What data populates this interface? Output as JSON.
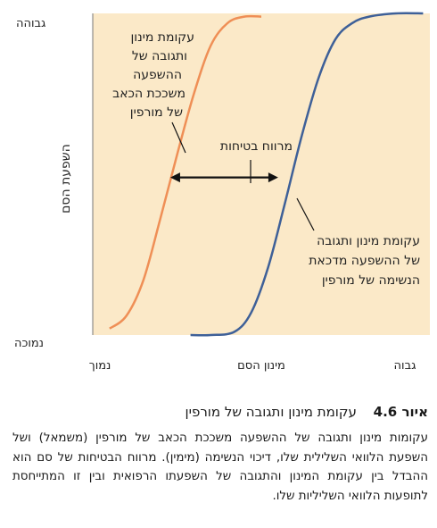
{
  "chart_data": {
    "type": "line",
    "ylabel": "השפעת הסם",
    "y_ticks": [
      "גבוהה",
      "נמוכה"
    ],
    "xlabel": "מינון הסם",
    "x_ticks": [
      "נמוך",
      "גבוה"
    ],
    "xlim": [
      0,
      1
    ],
    "ylim": [
      0,
      1
    ],
    "series": [
      {
        "name": "עקומת מינון ותגובה של ההשפעה משככת הכאב של מורפין",
        "color": "#ef8f56",
        "x": [
          0.05,
          0.1,
          0.15,
          0.2,
          0.25,
          0.3,
          0.35,
          0.4,
          0.45,
          0.5
        ],
        "y": [
          0.02,
          0.06,
          0.17,
          0.36,
          0.56,
          0.75,
          0.9,
          0.97,
          0.99,
          0.99
        ]
      },
      {
        "name": "עקומת מינון ותגובה של ההשפעה מדכאת הנשימה של מורפין",
        "color": "#3e6098",
        "x": [
          0.29,
          0.35,
          0.42,
          0.47,
          0.52,
          0.57,
          0.62,
          0.67,
          0.72,
          0.77,
          0.82,
          0.9,
          0.98
        ],
        "y": [
          0.0,
          0.0,
          0.01,
          0.07,
          0.21,
          0.41,
          0.62,
          0.8,
          0.92,
          0.97,
          0.99,
          1.0,
          1.0
        ]
      }
    ],
    "annotations": [
      {
        "text": "מרווח בטיחות",
        "type": "double-arrow",
        "x": [
          0.23,
          0.55
        ],
        "y": 0.49
      }
    ],
    "grid": false
  },
  "curve_label_1": [
    "עקומת מינון",
    "ותגובה של",
    "ההשפעה",
    "משככת הכאב",
    "של מורפין"
  ],
  "curve_label_2": [
    "עקומת מינון ותגובה",
    "של ההשפעה מדכאת",
    "הנשימה של מורפין"
  ],
  "figure": {
    "number": "איור 4.6",
    "title": "עקומת מינון ותגובה של מורפין",
    "body": "עקומות מינון ותגובה של ההשפעה משככת הכאב של מורפין (משמאל) ושל השפעת הלוואי השלילית שלו, דיכוי הנשימה (מימין). מרווח הבטיחות של סם הוא ההבדל בין עקומת המינון והתגובה של השפעתו הרפואית ובין זו המתייחסת לתופעות הלוואי השליליות שלו."
  },
  "colors": {
    "plot_background": "#fbe9c8",
    "axis": "#555555",
    "arrow": "#111111"
  }
}
